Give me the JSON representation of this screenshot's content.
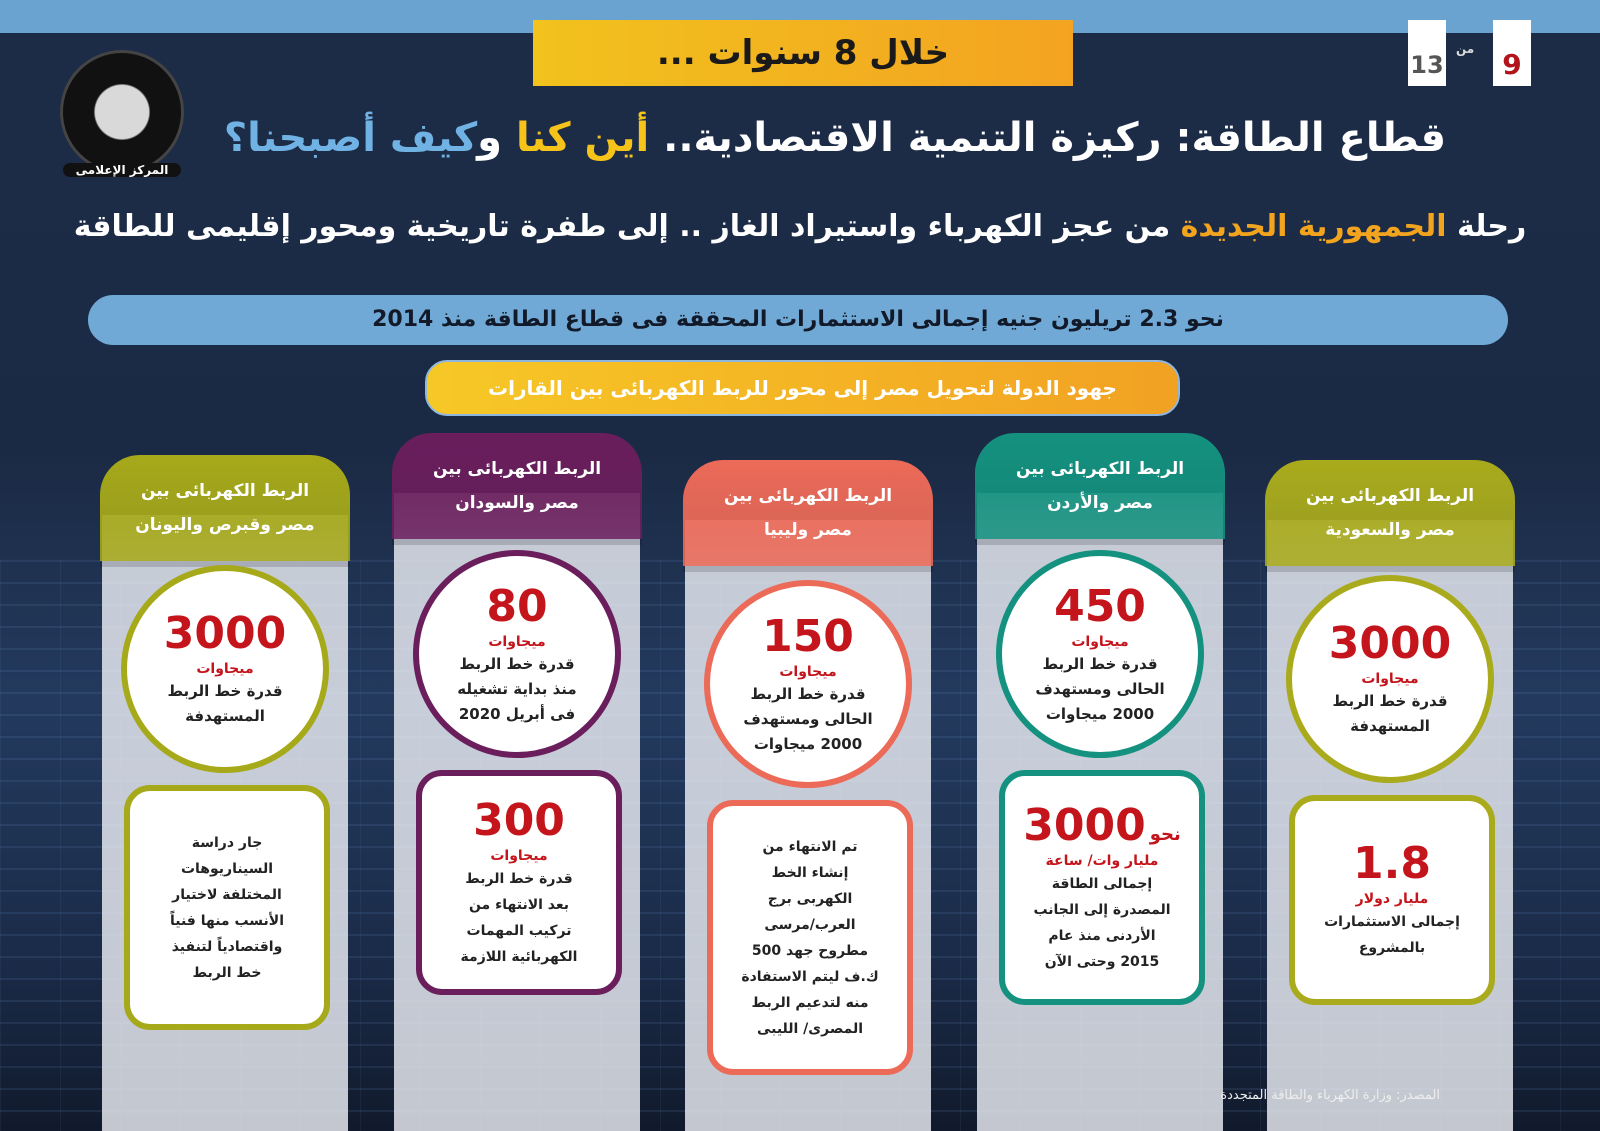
{
  "page": {
    "current": "9",
    "of": "من",
    "total": "13"
  },
  "logo": {
    "text": "جمهورية مصر العربية - رئاسة مجلس الوزراء - المركز الإعلامى",
    "label": "المركز الإعلامى"
  },
  "banner": "خلال 8 سنوات ...",
  "title1": {
    "part1": "قطاع الطاقة: ركيزة التنمية الاقتصادية.. ",
    "part2": "أين كنا",
    "part3": " و",
    "part4": "كيف أصبحنا؟"
  },
  "title2": {
    "part1": "رحلة ",
    "part2": "الجمهورية الجديدة",
    "part3": " من عجز الكهرباء واستيراد الغاز .. إلى طفرة تاريخية ومحور إقليمى للطاقة"
  },
  "investment": "نحو 2.3 تريليون جنيه إجمالى الاستثمارات المحققة فى قطاع الطاقة منذ 2014",
  "efforts": "جهود الدولة لتحويل مصر إلى محور للربط الكهربائى بين القارات",
  "colors": {
    "saudi": "#a9ab1c",
    "jordan": "#14917f",
    "libya": "#ec6a58",
    "sudan": "#6a1e5c",
    "greece": "#a6a919",
    "number": "#c3151b"
  },
  "columns": [
    {
      "key": "saudi",
      "header": [
        "الربط الكهربائى بين",
        "مصر والسعودية"
      ],
      "circle": {
        "number": "3000",
        "unit": "ميجاوات",
        "desc": [
          "قدرة خط الربط",
          "المستهدفة"
        ]
      },
      "box": {
        "number": "1.8",
        "unit": "مليار دولار",
        "desc": [
          "إجمالى الاستثمارات",
          "بالمشروع"
        ]
      }
    },
    {
      "key": "jordan",
      "header": [
        "الربط الكهربائى بين",
        "مصر والأردن"
      ],
      "circle": {
        "number": "450",
        "unit": "ميجاوات",
        "desc": [
          "قدرة خط الربط",
          "الحالى ومستهدف",
          "2000 ميجاوات"
        ]
      },
      "box": {
        "prefix": "نحو",
        "number": "3000",
        "unit": "مليار وات/ ساعة",
        "desc": [
          "إجمالى الطاقة",
          "المصدرة إلى الجانب",
          "الأردنى منذ عام",
          "2015 وحتى الآن"
        ]
      }
    },
    {
      "key": "libya",
      "header": [
        "الربط الكهربائى بين",
        "مصر وليبيا"
      ],
      "circle": {
        "number": "150",
        "unit": "ميجاوات",
        "desc": [
          "قدرة خط الربط",
          "الحالى ومستهدف",
          "2000 ميجاوات"
        ]
      },
      "box": {
        "desc": [
          "تم الانتهاء من",
          "إنشاء الخط",
          "الكهربى برج",
          "العرب/مرسى",
          "مطروح جهد 500",
          "ك.ف ليتم الاستفادة",
          "منه لتدعيم الربط",
          "المصرى/ الليبى"
        ]
      }
    },
    {
      "key": "sudan",
      "header": [
        "الربط الكهربائى بين",
        "مصر والسودان"
      ],
      "circle": {
        "number": "80",
        "unit": "ميجاوات",
        "desc": [
          "قدرة خط الربط",
          "منذ بداية تشغيله",
          "فى أبريل 2020"
        ]
      },
      "box": {
        "number": "300",
        "unit": "ميجاوات",
        "desc": [
          "قدرة خط الربط",
          "بعد الانتهاء من",
          "تركيب المهمات",
          "الكهربائية اللازمة"
        ]
      }
    },
    {
      "key": "greece",
      "header": [
        "الربط الكهربائى بين",
        "مصر وقبرص واليونان"
      ],
      "circle": {
        "number": "3000",
        "unit": "ميجاوات",
        "desc": [
          "قدرة خط الربط",
          "المستهدفة"
        ]
      },
      "box": {
        "desc": [
          "جار دراسة",
          "السيناريوهات",
          "المختلفة لاختيار",
          "الأنسب منها فنياً",
          "واقتصادياً لتنفيذ",
          "خط الربط"
        ]
      }
    }
  ],
  "source": "المصدر:  وزارة الكهرباء والطاقة المتجددة"
}
